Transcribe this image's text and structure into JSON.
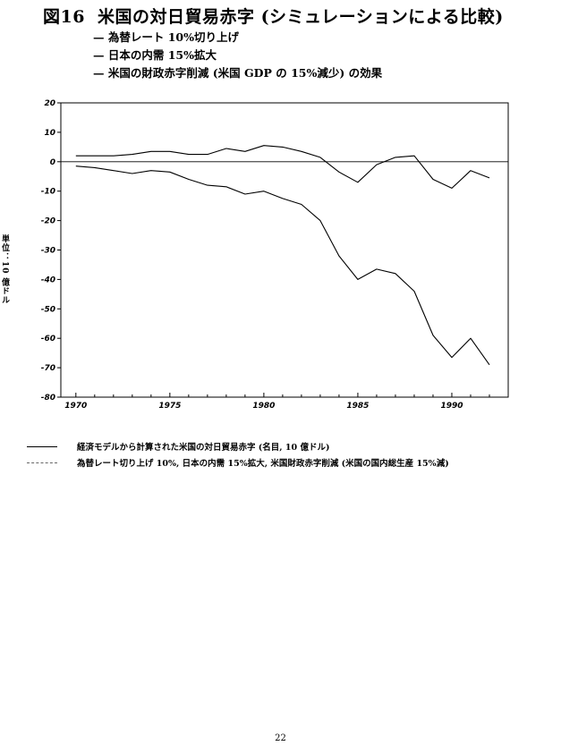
{
  "figure": {
    "number": "図16",
    "title": "米国の対日貿易赤字 (シミュレーションによる比較)",
    "scenarios": [
      "— 為替レート 10%切り上げ",
      "— 日本の内需 15%拡大",
      "— 米国の財政赤字削減 (米国 GDP の 15%減少) の効果"
    ],
    "y_unit_label": "単位：10 億ドル",
    "legend": [
      {
        "style": "solid",
        "text": "経済モデルから計算された米国の対日貿易赤字 (名目, 10 億ドル)"
      },
      {
        "style": "dotted",
        "text": "為替レート切り上げ 10%, 日本の内需 15%拡大, 米国財政赤字削減 (米国の国内総生産 15%減)"
      }
    ]
  },
  "chart_data": {
    "type": "line",
    "xlabel": "",
    "ylabel": "単位：10 億ドル",
    "xlim": [
      1969.2,
      1993.0
    ],
    "ylim": [
      -80,
      20
    ],
    "x_ticks": [
      1970,
      1975,
      1980,
      1985,
      1990
    ],
    "y_ticks": [
      20,
      10,
      0,
      -10,
      -20,
      -30,
      -40,
      -50,
      -60,
      -70,
      -80
    ],
    "x_tick_labels": [
      "1970",
      "1975",
      "1980",
      "1985",
      "1990"
    ],
    "y_tick_labels": [
      "20",
      "10",
      "0",
      "-10",
      "-20",
      "-30",
      "-40",
      "-50",
      "-60",
      "-70",
      "-80"
    ],
    "zero_line": true,
    "grid": false,
    "series": [
      {
        "style": "solid",
        "x": [
          1970,
          1971,
          1972,
          1973,
          1974,
          1975,
          1976,
          1977,
          1978,
          1979,
          1980,
          1981,
          1982,
          1983,
          1984,
          1985,
          1986,
          1987,
          1988,
          1989,
          1990,
          1991,
          1992
        ],
        "values": [
          -1.5,
          -2,
          -3,
          -4,
          -3,
          -3.5,
          -6,
          -8,
          -8.5,
          -11,
          -10,
          -12.5,
          -14.5,
          -20,
          -32,
          -40,
          -36.5,
          -38,
          -44,
          -59,
          -66.5,
          -60,
          -69
        ]
      },
      {
        "style": "upper",
        "x": [
          1970,
          1971,
          1972,
          1973,
          1974,
          1975,
          1976,
          1977,
          1978,
          1979,
          1980,
          1981,
          1982,
          1983,
          1984,
          1985,
          1986,
          1987,
          1988,
          1989,
          1990,
          1991,
          1992
        ],
        "values": [
          2,
          2,
          2,
          2.5,
          3.5,
          3.5,
          2.5,
          2.5,
          4.5,
          3.5,
          5.5,
          5,
          3.5,
          1.5,
          -3.5,
          -7,
          -1,
          1.5,
          2,
          -6,
          -9,
          -3,
          -5.5
        ]
      }
    ]
  },
  "page_number": "22"
}
